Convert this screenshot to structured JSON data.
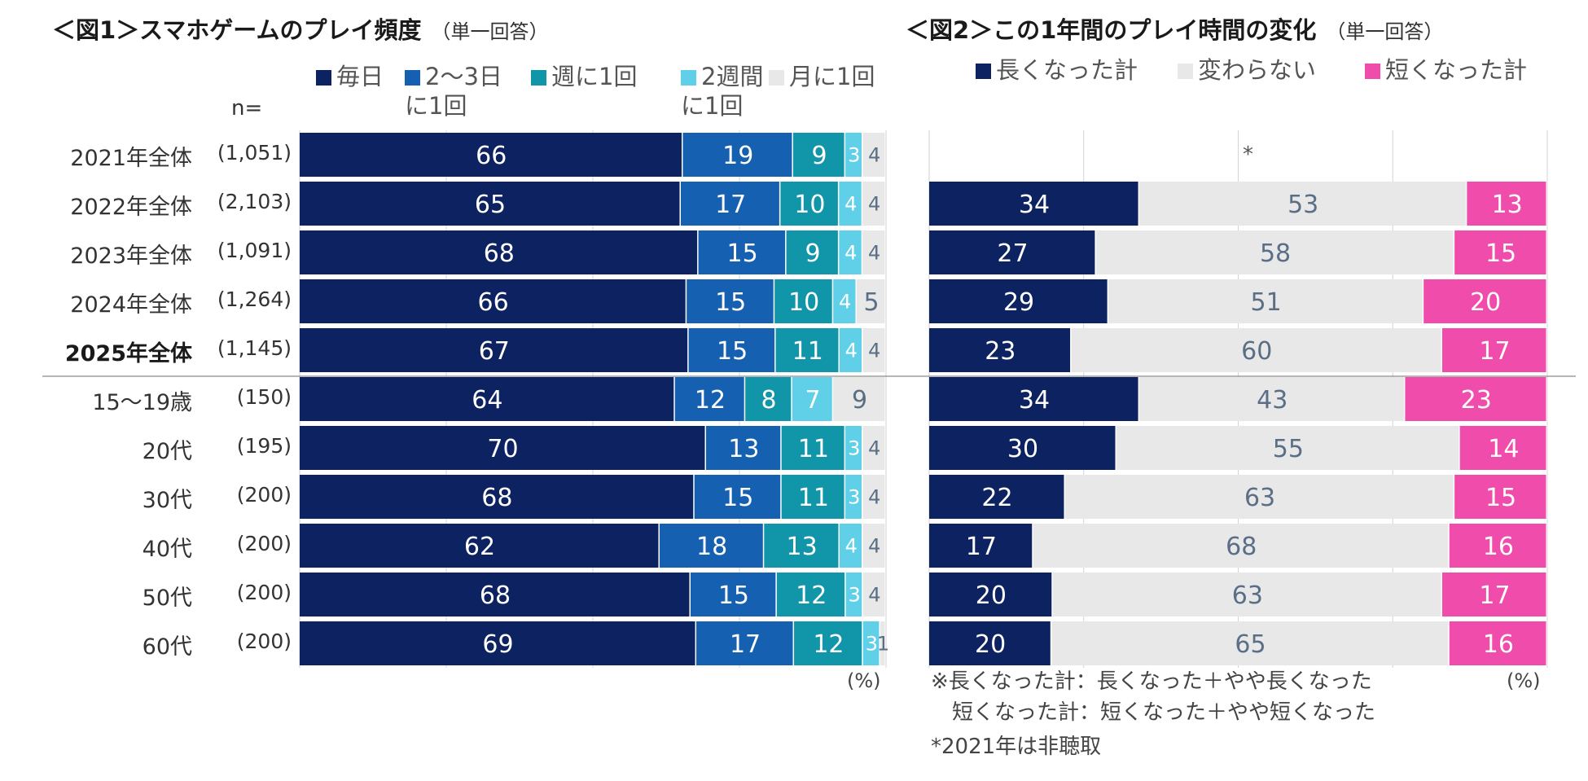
{
  "fig1": {
    "title": "＜図1＞スマホゲームのプレイ頻度",
    "subtitle": "（単一回答）",
    "n_header": "n=",
    "unit": "(%)"
  },
  "fig2": {
    "title": "＜図2＞この1年間のプレイ時間の変化",
    "subtitle": "（単一回答）",
    "unit": "(%)",
    "missing_marker": "*",
    "notes": [
      "※長くなった計：長くなった＋やや長くなった",
      "　短くなった計：短くなった＋やや短くなった",
      "*2021年は非聴取"
    ]
  },
  "rows": [
    {
      "label": "2021年全体",
      "n": "(1,051)",
      "bold": false
    },
    {
      "label": "2022年全体",
      "n": "(2,103)",
      "bold": false
    },
    {
      "label": "2023年全体",
      "n": "(1,091)",
      "bold": false
    },
    {
      "label": "2024年全体",
      "n": "(1,264)",
      "bold": false
    },
    {
      "label": "2025年全体",
      "n": "(1,145)",
      "bold": true
    },
    {
      "label": "15～19歳",
      "n": "(150)",
      "bold": false
    },
    {
      "label": "20代",
      "n": "(195)",
      "bold": false
    },
    {
      "label": "30代",
      "n": "(200)",
      "bold": false
    },
    {
      "label": "40代",
      "n": "(200)",
      "bold": false
    },
    {
      "label": "50代",
      "n": "(200)",
      "bold": false
    },
    {
      "label": "60代",
      "n": "(200)",
      "bold": false
    }
  ],
  "chart_data": [
    {
      "type": "bar",
      "stacked": true,
      "orientation": "horizontal",
      "title": "＜図1＞スマホゲームのプレイ頻度",
      "categories": [
        "2021年全体",
        "2022年全体",
        "2023年全体",
        "2024年全体",
        "2025年全体",
        "15～19歳",
        "20代",
        "30代",
        "40代",
        "50代",
        "60代"
      ],
      "xlim": [
        0,
        100
      ],
      "grid": true,
      "legend_position": "top",
      "series": [
        {
          "name": "毎日",
          "color": "#0d2261",
          "label_color": "#ffffff",
          "values": [
            66,
            65,
            68,
            66,
            67,
            64,
            70,
            68,
            62,
            68,
            69
          ]
        },
        {
          "name": "2～3日に1回",
          "legend_lines": [
            "2～3日",
            "に1回"
          ],
          "color": "#1560b0",
          "label_color": "#ffffff",
          "values": [
            19,
            17,
            15,
            15,
            15,
            12,
            13,
            15,
            18,
            15,
            17
          ]
        },
        {
          "name": "週に1回",
          "color": "#1096a8",
          "label_color": "#ffffff",
          "values": [
            9,
            10,
            9,
            10,
            11,
            8,
            11,
            11,
            13,
            12,
            12
          ]
        },
        {
          "name": "2週間に1回",
          "legend_lines": [
            "2週間",
            "に1回"
          ],
          "color": "#5fd0e8",
          "label_color": "#ffffff",
          "values": [
            3,
            4,
            4,
            4,
            4,
            7,
            3,
            3,
            4,
            3,
            3
          ]
        },
        {
          "name": "月に1回",
          "color": "#e8e8e8",
          "label_color": "#5a6e85",
          "values": [
            4,
            4,
            4,
            5,
            4,
            9,
            4,
            4,
            4,
            4,
            1
          ]
        }
      ]
    },
    {
      "type": "bar",
      "stacked": true,
      "orientation": "horizontal",
      "title": "＜図2＞この1年間のプレイ時間の変化",
      "categories": [
        "2021年全体",
        "2022年全体",
        "2023年全体",
        "2024年全体",
        "2025年全体",
        "15～19歳",
        "20代",
        "30代",
        "40代",
        "50代",
        "60代"
      ],
      "xlim": [
        0,
        100
      ],
      "grid": true,
      "legend_position": "top",
      "series": [
        {
          "name": "長くなった計",
          "color": "#0d2261",
          "label_color": "#ffffff",
          "values": [
            null,
            34,
            27,
            29,
            23,
            34,
            30,
            22,
            17,
            20,
            20
          ]
        },
        {
          "name": "変わらない",
          "color": "#e8e8e8",
          "label_color": "#5a6e85",
          "values": [
            null,
            53,
            58,
            51,
            60,
            43,
            55,
            63,
            68,
            63,
            65
          ]
        },
        {
          "name": "短くなった計",
          "color": "#f04cac",
          "label_color": "#ffffff",
          "values": [
            null,
            13,
            15,
            20,
            17,
            23,
            14,
            15,
            16,
            17,
            16
          ]
        }
      ]
    }
  ]
}
